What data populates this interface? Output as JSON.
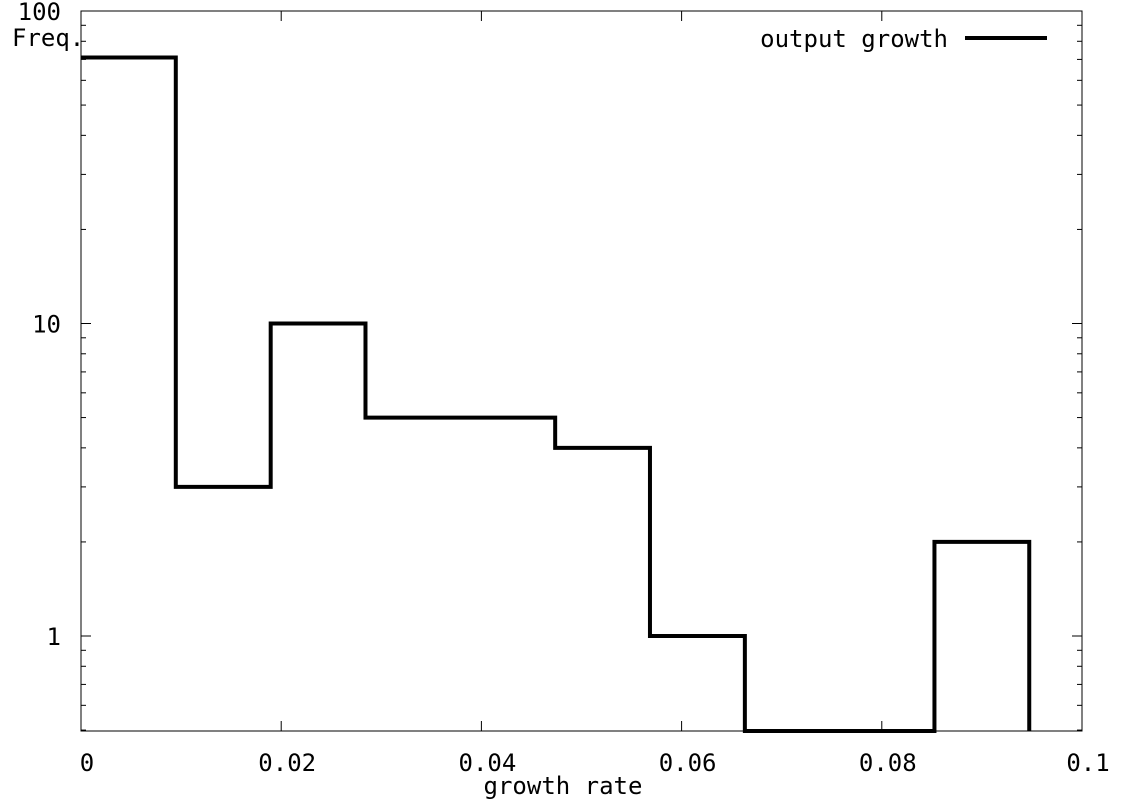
{
  "chart_data": {
    "type": "line",
    "drawstyle": "steps",
    "title": "",
    "xlabel": "growth rate",
    "ylabel": "Freq.",
    "xscale": "linear",
    "yscale": "log",
    "xlim": [
      0,
      0.1
    ],
    "ylim": [
      0.5,
      100
    ],
    "grid": false,
    "legend_position": "top-right",
    "x_ticks": [
      0,
      0.02,
      0.04,
      0.06,
      0.08,
      0.1
    ],
    "x_tick_labels": [
      "0",
      "0.02",
      "0.04",
      "0.06",
      "0.08",
      "0.1"
    ],
    "y_ticks": [
      1,
      10,
      100
    ],
    "y_tick_labels": [
      "1",
      "10",
      "100"
    ],
    "series": [
      {
        "name": "output growth",
        "color": "#000000",
        "bin_width": 0.00947,
        "bin_starts": [
          0,
          0.00947,
          0.01895,
          0.02842,
          0.03789,
          0.04737,
          0.05684,
          0.06632,
          0.07579,
          0.08526
        ],
        "values": [
          71,
          3,
          10,
          5,
          5,
          4,
          1,
          0,
          0,
          2
        ]
      }
    ]
  }
}
